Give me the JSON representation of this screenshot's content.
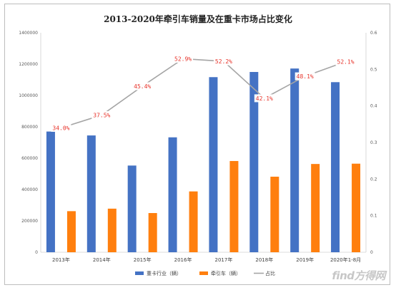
{
  "chart_data": {
    "type": "bar+line",
    "title": "2013-2020年牵引车销量及在重卡市场占比变化",
    "categories": [
      "2013年",
      "2014年",
      "2015年",
      "2016年",
      "2017年",
      "2018年",
      "2019年",
      "2020年1-8月"
    ],
    "series": [
      {
        "name": "重卡行业（辆）",
        "type": "bar",
        "axis": "left",
        "color": "#4472c4",
        "values": [
          770000,
          745000,
          553000,
          733000,
          1117000,
          1150000,
          1172000,
          1085000
        ]
      },
      {
        "name": "牵引车（辆）",
        "type": "bar",
        "axis": "left",
        "color": "#ff7f0e",
        "values": [
          262000,
          278000,
          250000,
          388000,
          582000,
          482000,
          563000,
          565000
        ]
      },
      {
        "name": "占比",
        "type": "line",
        "axis": "right",
        "color": "#a5a5a5",
        "values": [
          0.34,
          0.375,
          0.454,
          0.529,
          0.522,
          0.421,
          0.481,
          0.521
        ],
        "labels": [
          "34.0%",
          "37.5%",
          "45.4%",
          "52.9%",
          "52.2%",
          "42.1%",
          "48.1%",
          "52.1%"
        ],
        "label_color": "#e8332a"
      }
    ],
    "y_left": {
      "min": 0,
      "max": 1400000,
      "ticks": [
        "0",
        "200000",
        "400000",
        "600000",
        "800000",
        "1000000",
        "1200000",
        "1400000"
      ]
    },
    "y_right": {
      "min": 0,
      "max": 0.6,
      "ticks": [
        "0",
        "0.1",
        "0.2",
        "0.3",
        "0.4",
        "0.5",
        "0.6"
      ]
    },
    "grid": false,
    "legend_position": "bottom"
  },
  "watermark": "find方得网"
}
